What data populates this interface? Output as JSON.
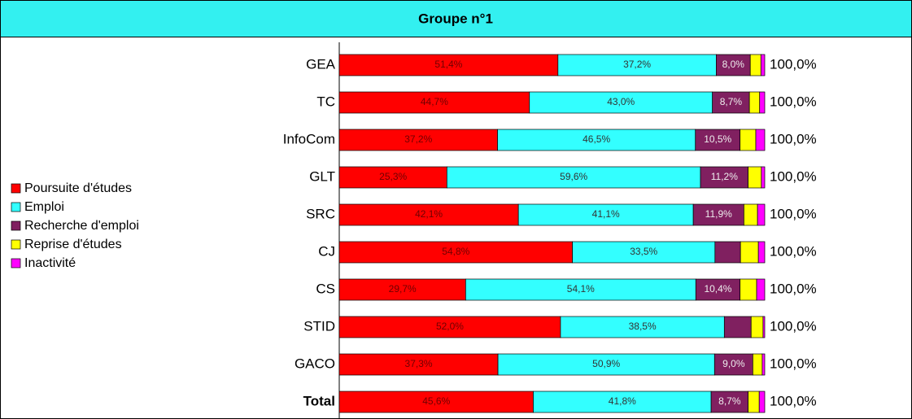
{
  "chart_data": {
    "type": "stacked-bar-horizontal",
    "title": "Groupe n°1",
    "categories": [
      "GEA",
      "TC",
      "InfoCom",
      "GLT",
      "SRC",
      "CJ",
      "CS",
      "STID",
      "GACO",
      "Total"
    ],
    "xlim": [
      0,
      100
    ],
    "series": [
      {
        "name": "Poursuite d'études",
        "color": "#ff0000",
        "values": [
          51.4,
          44.7,
          37.2,
          25.3,
          42.1,
          54.8,
          29.7,
          52.0,
          37.3,
          45.6
        ],
        "value_labels": [
          "51,4%",
          "44,7%",
          "37,2%",
          "25,3%",
          "42,1%",
          "54,8%",
          "29,7%",
          "52,0%",
          "37,3%",
          "45,6%"
        ]
      },
      {
        "name": "Emploi",
        "color": "#33ffff",
        "values": [
          37.2,
          43.0,
          46.5,
          59.6,
          41.1,
          33.5,
          54.1,
          38.5,
          50.9,
          41.8
        ],
        "value_labels": [
          "37,2%",
          "43,0%",
          "46,5%",
          "59,6%",
          "41,1%",
          "33,5%",
          "54,1%",
          "38,5%",
          "50,9%",
          "41,8%"
        ]
      },
      {
        "name": "Recherche d'emploi",
        "color": "#802060",
        "values": [
          8.0,
          8.7,
          10.5,
          11.2,
          11.9,
          6.0,
          10.4,
          6.3,
          9.0,
          8.7
        ],
        "value_labels": [
          "8,0%",
          "8,7%",
          "10,5%",
          "11,2%",
          "11,9%",
          null,
          "10,4%",
          null,
          "9,0%",
          "8,7%"
        ]
      },
      {
        "name": "Reprise d'études",
        "color": "#ffff00",
        "values": [
          2.5,
          2.4,
          3.7,
          3.1,
          3.2,
          4.2,
          3.9,
          2.8,
          2.2,
          2.6
        ]
      },
      {
        "name": "Inactivité",
        "color": "#ff00ff",
        "values": [
          0.9,
          1.2,
          2.1,
          0.8,
          1.7,
          1.5,
          1.9,
          0.4,
          0.6,
          1.3
        ]
      }
    ],
    "totals": [
      100,
      100,
      100,
      100,
      100,
      100,
      100,
      100,
      100,
      100
    ],
    "total_labels": [
      "100,0%",
      "100,0%",
      "100,0%",
      "100,0%",
      "100,0%",
      "100,0%",
      "100,0%",
      "100,0%",
      "100,0%",
      "100,0%"
    ]
  }
}
